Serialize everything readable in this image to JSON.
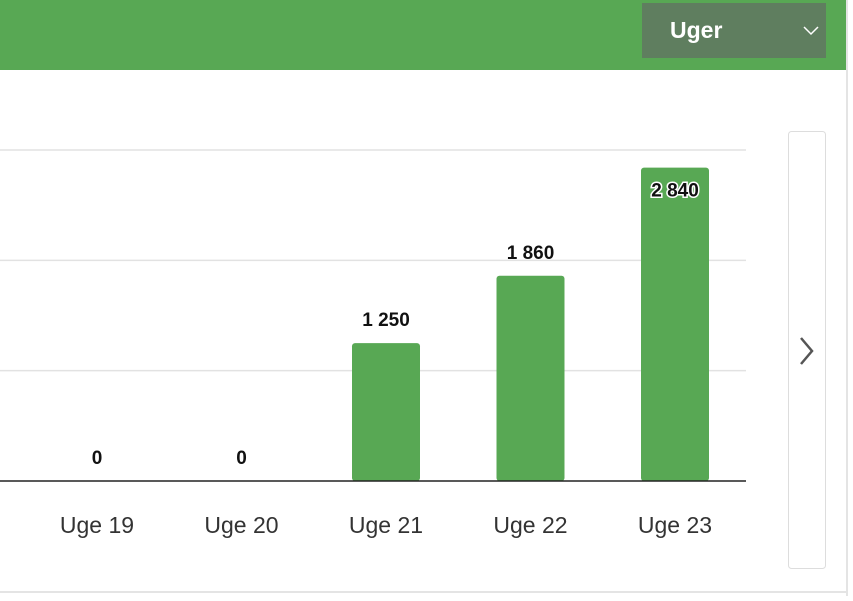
{
  "header": {
    "dropdown": "Uger"
  },
  "chart_data": {
    "type": "bar",
    "categories": [
      "Uge 19",
      "Uge 20",
      "Uge 21",
      "Uge 22",
      "Uge 23"
    ],
    "values": [
      0,
      0,
      1250,
      1860,
      2840
    ],
    "value_labels": [
      "0",
      "0",
      "1 250",
      "1 860",
      "2 840"
    ],
    "color": "#58a854",
    "ylim": [
      0,
      3000
    ],
    "yticks": [
      0,
      1000,
      2000,
      3000
    ],
    "grid": true
  }
}
